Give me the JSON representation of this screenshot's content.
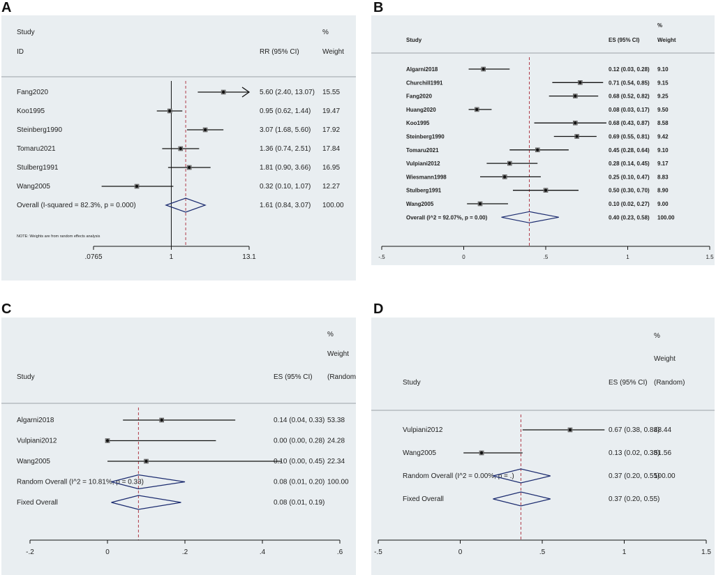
{
  "panels": [
    {
      "letter": "A",
      "chart_data": {
        "type": "forest",
        "scale": "log",
        "header": {
          "line1": [
            "Study",
            "",
            "%"
          ],
          "line2": [
            "ID",
            "RR (95% CI)",
            "Weight"
          ]
        },
        "studies": [
          {
            "name": "Fang2020",
            "est": 5.6,
            "lo": 2.4,
            "hi": 13.07,
            "ci_text": "5.60 (2.40, 13.07)",
            "weight": "15.55",
            "arrow": true
          },
          {
            "name": "Koo1995",
            "est": 0.95,
            "lo": 0.62,
            "hi": 1.44,
            "ci_text": "0.95 (0.62, 1.44)",
            "weight": "19.47"
          },
          {
            "name": "Steinberg1990",
            "est": 3.07,
            "lo": 1.68,
            "hi": 5.6,
            "ci_text": "3.07 (1.68, 5.60)",
            "weight": "17.92"
          },
          {
            "name": "Tomaru2021",
            "est": 1.36,
            "lo": 0.74,
            "hi": 2.51,
            "ci_text": "1.36 (0.74, 2.51)",
            "weight": "17.84"
          },
          {
            "name": "Stulberg1991",
            "est": 1.81,
            "lo": 0.9,
            "hi": 3.66,
            "ci_text": "1.81 (0.90, 3.66)",
            "weight": "16.95"
          },
          {
            "name": "Wang2005",
            "est": 0.32,
            "lo": 0.1,
            "hi": 1.07,
            "ci_text": "0.32 (0.10, 1.07)",
            "weight": "12.27"
          }
        ],
        "overall": [
          {
            "name": "Overall  (I-squared = 82.3%, p = 0.000)",
            "est": 1.61,
            "lo": 0.84,
            "hi": 3.07,
            "ci_text": "1.61 (0.84, 3.07)",
            "weight": "100.00"
          }
        ],
        "note": "NOTE: Weights are from random effects analysis",
        "null_line": 1,
        "xlim": [
          0.0765,
          13.1
        ],
        "ticks": [
          {
            "v": 0.0765,
            "label": ".0765"
          },
          {
            "v": 1,
            "label": "1"
          },
          {
            "v": 13.1,
            "label": "13.1"
          }
        ]
      }
    },
    {
      "letter": "B",
      "chart_data": {
        "type": "forest",
        "scale": "linear",
        "header": {
          "line1": [
            "",
            "",
            "%"
          ],
          "line2": [
            "Study",
            "ES (95% CI)",
            "Weight"
          ]
        },
        "studies": [
          {
            "name": "Algarni2018",
            "est": 0.12,
            "lo": 0.03,
            "hi": 0.28,
            "ci_text": "0.12 (0.03, 0.28)",
            "weight": "9.10"
          },
          {
            "name": "Churchill1991",
            "est": 0.71,
            "lo": 0.54,
            "hi": 0.85,
            "ci_text": "0.71 (0.54, 0.85)",
            "weight": "9.15"
          },
          {
            "name": "Fang2020",
            "est": 0.68,
            "lo": 0.52,
            "hi": 0.82,
            "ci_text": "0.68 (0.52, 0.82)",
            "weight": "9.25"
          },
          {
            "name": "Huang2020",
            "est": 0.08,
            "lo": 0.03,
            "hi": 0.17,
            "ci_text": "0.08 (0.03, 0.17)",
            "weight": "9.50"
          },
          {
            "name": "Koo1995",
            "est": 0.68,
            "lo": 0.43,
            "hi": 0.87,
            "ci_text": "0.68 (0.43, 0.87)",
            "weight": "8.58"
          },
          {
            "name": "Steinberg1990",
            "est": 0.69,
            "lo": 0.55,
            "hi": 0.81,
            "ci_text": "0.69 (0.55, 0.81)",
            "weight": "9.42"
          },
          {
            "name": "Tomaru2021",
            "est": 0.45,
            "lo": 0.28,
            "hi": 0.64,
            "ci_text": "0.45 (0.28, 0.64)",
            "weight": "9.10"
          },
          {
            "name": "Vulpiani2012",
            "est": 0.28,
            "lo": 0.14,
            "hi": 0.45,
            "ci_text": "0.28 (0.14, 0.45)",
            "weight": "9.17"
          },
          {
            "name": "Wiesmann1998",
            "est": 0.25,
            "lo": 0.1,
            "hi": 0.47,
            "ci_text": "0.25 (0.10, 0.47)",
            "weight": "8.83"
          },
          {
            "name": "Stulberg1991",
            "est": 0.5,
            "lo": 0.3,
            "hi": 0.7,
            "ci_text": "0.50 (0.30, 0.70)",
            "weight": "8.90"
          },
          {
            "name": "Wang2005",
            "est": 0.1,
            "lo": 0.02,
            "hi": 0.27,
            "ci_text": "0.10 (0.02, 0.27)",
            "weight": "9.00"
          }
        ],
        "overall": [
          {
            "name": "Overall  (I^2 = 92.07%, p = 0.00)",
            "est": 0.4,
            "lo": 0.23,
            "hi": 0.58,
            "ci_text": "0.40 (0.23, 0.58)",
            "weight": "100.00"
          }
        ],
        "note": "",
        "null_line": null,
        "xlim": [
          -0.5,
          1.5
        ],
        "ticks": [
          {
            "v": -0.5,
            "label": "-.5"
          },
          {
            "v": 0,
            "label": "0"
          },
          {
            "v": 0.5,
            "label": ".5"
          },
          {
            "v": 1,
            "label": "1"
          },
          {
            "v": 1.5,
            "label": "1.5"
          }
        ]
      }
    },
    {
      "letter": "C",
      "chart_data": {
        "type": "forest",
        "scale": "linear",
        "header": {
          "line1": [
            "",
            "",
            "%"
          ],
          "line1b": [
            "",
            "",
            "Weight"
          ],
          "line2": [
            "Study",
            "ES (95% CI)",
            "(Random)"
          ]
        },
        "studies": [
          {
            "name": "Algarni2018",
            "est": 0.14,
            "lo": 0.04,
            "hi": 0.33,
            "ci_text": "0.14 (0.04, 0.33)",
            "weight": "53.38"
          },
          {
            "name": "Vulpiani2012",
            "est": 0.0,
            "lo": 0.0,
            "hi": 0.28,
            "ci_text": "0.00 (0.00, 0.28)",
            "weight": "24.28"
          },
          {
            "name": "Wang2005",
            "est": 0.1,
            "lo": 0.0,
            "hi": 0.45,
            "ci_text": "0.10 (0.00, 0.45)",
            "weight": "22.34"
          }
        ],
        "overall": [
          {
            "name": "Random Overall  (I^2 = 10.81%, p = 0.33)",
            "est": 0.08,
            "lo": 0.01,
            "hi": 0.2,
            "ci_text": "0.08 (0.01, 0.20)",
            "weight": "100.00"
          },
          {
            "name": "Fixed Overall",
            "est": 0.08,
            "lo": 0.01,
            "hi": 0.19,
            "ci_text": "0.08 (0.01, 0.19)",
            "weight": ""
          }
        ],
        "note": "",
        "null_line": null,
        "xlim": [
          -0.2,
          0.6
        ],
        "ticks": [
          {
            "v": -0.2,
            "label": "-.2"
          },
          {
            "v": 0,
            "label": "0"
          },
          {
            "v": 0.2,
            "label": ".2"
          },
          {
            "v": 0.4,
            "label": ".4"
          },
          {
            "v": 0.6,
            "label": ".6"
          }
        ]
      }
    },
    {
      "letter": "D",
      "chart_data": {
        "type": "forest",
        "scale": "linear",
        "header": {
          "line1": [
            "",
            "",
            "%"
          ],
          "line1b": [
            "",
            "",
            "Weight"
          ],
          "line2": [
            "Study",
            "ES (95% CI)",
            "(Random)"
          ]
        },
        "studies": [
          {
            "name": "Vulpiani2012",
            "est": 0.67,
            "lo": 0.38,
            "hi": 0.88,
            "ci_text": "0.67 (0.38, 0.88)",
            "weight": "48.44"
          },
          {
            "name": "Wang2005",
            "est": 0.13,
            "lo": 0.02,
            "hi": 0.38,
            "ci_text": "0.13 (0.02, 0.38)",
            "weight": "51.56"
          }
        ],
        "overall": [
          {
            "name": "Random Overall  (I^2 = 0.00%, p = .)",
            "est": 0.37,
            "lo": 0.2,
            "hi": 0.55,
            "ci_text": "0.37 (0.20, 0.55)",
            "weight": "100.00"
          },
          {
            "name": "Fixed Overall",
            "est": 0.37,
            "lo": 0.2,
            "hi": 0.55,
            "ci_text": "0.37 (0.20, 0.55)",
            "weight": ""
          }
        ],
        "note": "",
        "null_line": null,
        "xlim": [
          -0.5,
          1.5
        ],
        "ticks": [
          {
            "v": -0.5,
            "label": "-.5"
          },
          {
            "v": 0,
            "label": "0"
          },
          {
            "v": 0.5,
            "label": ".5"
          },
          {
            "v": 1,
            "label": "1"
          },
          {
            "v": 1.5,
            "label": "1.5"
          }
        ]
      }
    }
  ],
  "colors": {
    "bg": "#e9eef1",
    "line": "#111111",
    "diamond": "#1a2a6e",
    "dashed": "#b03a48",
    "text": "#222222"
  }
}
